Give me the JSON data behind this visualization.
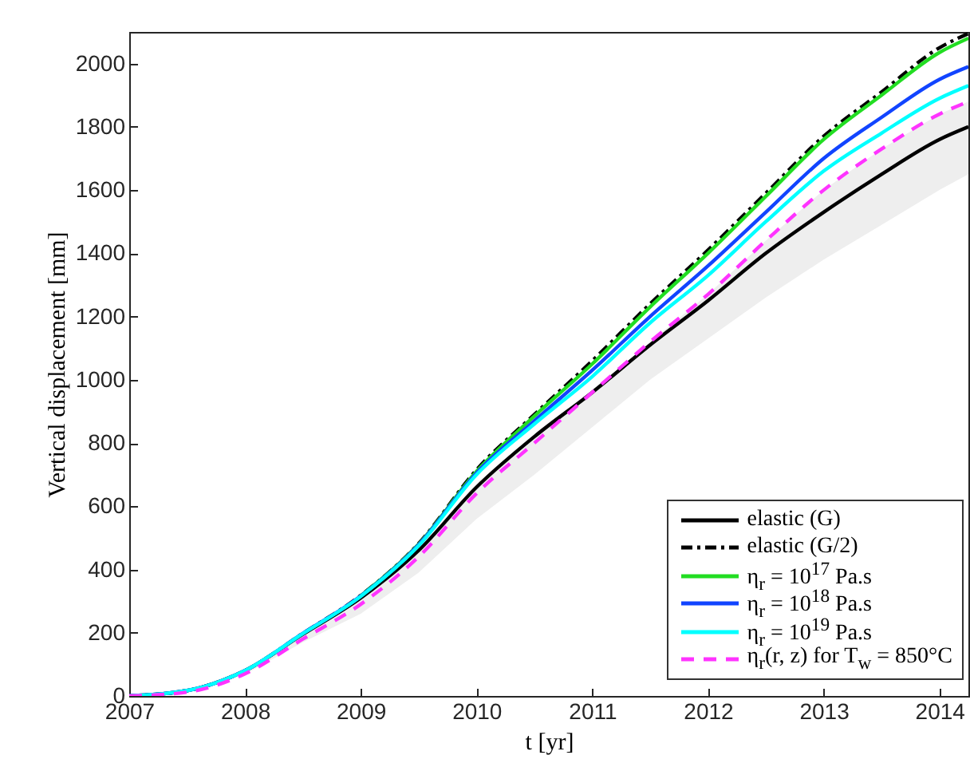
{
  "chart_data": {
    "type": "line",
    "xlabel": "t [yr]",
    "ylabel": "Vertical displacement [mm]",
    "x": [
      2007,
      2007.5,
      2008,
      2008.5,
      2009,
      2009.5,
      2010,
      2010.5,
      2011,
      2011.5,
      2012,
      2012.5,
      2013,
      2013.5,
      2014,
      2014.25
    ],
    "xlim": [
      2007,
      2014.25
    ],
    "xticks": [
      2007,
      2008,
      2009,
      2010,
      2011,
      2012,
      2013,
      2014
    ],
    "ylim": [
      0,
      2100
    ],
    "yticks": [
      0,
      200,
      400,
      600,
      800,
      1000,
      1200,
      1400,
      1600,
      1800,
      2000
    ],
    "grid": false,
    "legend": "bottom right",
    "series": [
      {
        "name": "elastic (G)",
        "color": "#000000",
        "line_style": "solid",
        "values": [
          0,
          17,
          80,
          195,
          310,
          460,
          660,
          820,
          960,
          1110,
          1250,
          1400,
          1530,
          1650,
          1760,
          1800
        ]
      },
      {
        "name": "elastic (G/2)",
        "color": "#000000",
        "line_style": "dashdot",
        "values": [
          0,
          17,
          80,
          198,
          318,
          482,
          715,
          890,
          1060,
          1240,
          1410,
          1590,
          1770,
          1910,
          2050,
          2095
        ]
      },
      {
        "name": "η$_{r}$ = 10$^{17}$ Pa.s",
        "color": "#22dd22",
        "line_style": "solid",
        "values": [
          null,
          null,
          null,
          null,
          317,
          480,
          710,
          885,
          1050,
          1230,
          1400,
          1580,
          1760,
          1900,
          2035,
          2080
        ]
      },
      {
        "name": "η$_{r}$ = 10$^{18}$ Pa.s",
        "color": "#1144ff",
        "line_style": "solid",
        "values": [
          0,
          17,
          80,
          198,
          316,
          478,
          705,
          870,
          1030,
          1200,
          1360,
          1530,
          1700,
          1830,
          1950,
          1990
        ]
      },
      {
        "name": "η$_{r}$ = 10$^{19}$ Pa.s",
        "color": "#00ffff",
        "line_style": "solid",
        "values": [
          0,
          17,
          80,
          197,
          315,
          475,
          700,
          860,
          1010,
          1180,
          1330,
          1500,
          1660,
          1780,
          1890,
          1930
        ]
      },
      {
        "name": "η$_{r}$(r, z) for T$_{w}$ = 850°C",
        "color": "#ff33ff",
        "line_style": "dashed",
        "values": [
          0,
          12,
          70,
          180,
          290,
          440,
          640,
          800,
          960,
          1120,
          1270,
          1440,
          1600,
          1730,
          1840,
          1880
        ],
        "lower": [
          0,
          12,
          68,
          170,
          260,
          390,
          560,
          700,
          850,
          1000,
          1130,
          1260,
          1380,
          1490,
          1600,
          1650
        ],
        "upper": [
          0,
          17,
          80,
          195,
          310,
          460,
          660,
          820,
          960,
          1120,
          1270,
          1440,
          1600,
          1730,
          1840,
          1880
        ]
      }
    ]
  }
}
